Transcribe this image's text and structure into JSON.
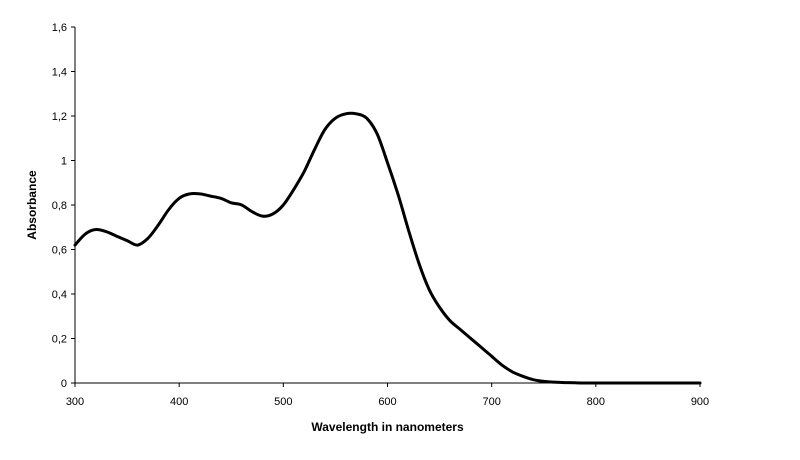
{
  "chart_data": {
    "type": "line",
    "title": "",
    "xlabel": "Wavelength in nanometers",
    "ylabel": "Absorbance",
    "xlim": [
      300,
      900
    ],
    "ylim": [
      0,
      1.6
    ],
    "x_ticks": [
      300,
      400,
      500,
      600,
      700,
      800,
      900
    ],
    "x_tick_labels": [
      "300",
      "400",
      "500",
      "600",
      "700",
      "800",
      "900"
    ],
    "y_ticks": [
      0,
      0.2,
      0.4,
      0.6,
      0.8,
      1,
      1.2,
      1.4,
      1.6
    ],
    "y_tick_labels": [
      "0",
      "0,2",
      "0,4",
      "0,6",
      "0,8",
      "1",
      "1,2",
      "1,4",
      "1,6"
    ],
    "grid": false,
    "legend": "none",
    "line_color": "#000000",
    "series": [
      {
        "x": [
          300,
          310,
          320,
          330,
          340,
          350,
          360,
          370,
          380,
          390,
          400,
          410,
          420,
          430,
          440,
          450,
          460,
          470,
          480,
          490,
          500,
          510,
          520,
          530,
          540,
          550,
          560,
          570,
          580,
          590,
          600,
          610,
          620,
          630,
          640,
          650,
          660,
          670,
          680,
          690,
          700,
          710,
          720,
          730,
          740,
          750,
          760,
          770,
          780,
          800,
          850,
          900
        ],
        "y": [
          0.62,
          0.67,
          0.69,
          0.68,
          0.66,
          0.64,
          0.62,
          0.65,
          0.71,
          0.78,
          0.83,
          0.85,
          0.85,
          0.84,
          0.83,
          0.81,
          0.8,
          0.77,
          0.75,
          0.76,
          0.8,
          0.87,
          0.95,
          1.05,
          1.14,
          1.19,
          1.21,
          1.21,
          1.19,
          1.12,
          0.99,
          0.85,
          0.69,
          0.54,
          0.42,
          0.34,
          0.28,
          0.24,
          0.2,
          0.16,
          0.12,
          0.08,
          0.05,
          0.03,
          0.015,
          0.007,
          0.004,
          0.002,
          0.001,
          0.0,
          0.0,
          0.0
        ]
      }
    ]
  }
}
